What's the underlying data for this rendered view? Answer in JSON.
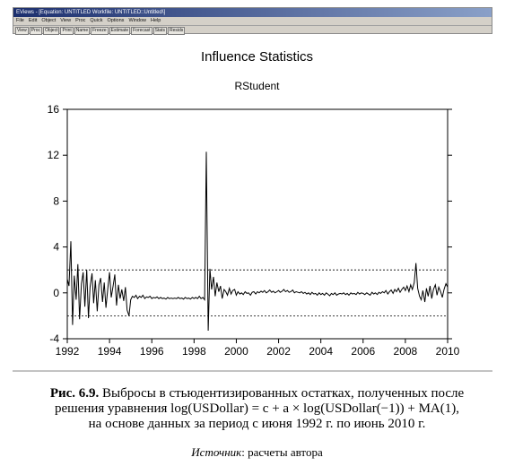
{
  "window": {
    "title": "EViews - [Equation: UNTITLED   Workfile: UNTITLED::Untitled\\]",
    "menu": [
      "File",
      "Edit",
      "Object",
      "View",
      "Proc",
      "Quick",
      "Options",
      "Window",
      "Help"
    ],
    "toolbar": [
      "View",
      "Proc",
      "Object",
      "Print",
      "Name",
      "Freeze",
      "Estimate",
      "Forecast",
      "Stats",
      "Resids"
    ]
  },
  "chart_data": {
    "type": "line",
    "title": "Influence Statistics",
    "subtitle": "RStudent",
    "xlabel": "",
    "ylabel": "",
    "xlim": [
      1992.0,
      2010.0
    ],
    "ylim": [
      -4,
      16
    ],
    "x_ticks": [
      1992,
      1994,
      1996,
      1998,
      2000,
      2002,
      2004,
      2006,
      2008,
      2010
    ],
    "y_ticks": [
      -4,
      0,
      4,
      8,
      12,
      16
    ],
    "reference_lines": [
      2,
      -2
    ],
    "grid": false,
    "series": [
      {
        "points": [
          [
            1992.0,
            1.2
          ],
          [
            1992.08,
            0.6
          ],
          [
            1992.17,
            4.5
          ],
          [
            1992.25,
            -2.8
          ],
          [
            1992.33,
            1.5
          ],
          [
            1992.42,
            -0.6
          ],
          [
            1992.5,
            2.5
          ],
          [
            1992.58,
            -2.3
          ],
          [
            1992.67,
            0.8
          ],
          [
            1992.75,
            1.8
          ],
          [
            1992.83,
            -1.2
          ],
          [
            1992.92,
            2.0
          ],
          [
            1993.0,
            -2.2
          ],
          [
            1993.08,
            0.5
          ],
          [
            1993.17,
            1.7
          ],
          [
            1993.25,
            -0.9
          ],
          [
            1993.33,
            1.1
          ],
          [
            1993.42,
            -1.6
          ],
          [
            1993.5,
            0.7
          ],
          [
            1993.58,
            1.3
          ],
          [
            1993.67,
            -0.8
          ],
          [
            1993.75,
            0.9
          ],
          [
            1993.83,
            -1.3
          ],
          [
            1993.92,
            0.4
          ],
          [
            1994.0,
            1.8
          ],
          [
            1994.08,
            -0.4
          ],
          [
            1994.17,
            0.6
          ],
          [
            1994.25,
            1.6
          ],
          [
            1994.33,
            -1.1
          ],
          [
            1994.42,
            0.7
          ],
          [
            1994.5,
            -0.5
          ],
          [
            1994.58,
            0.3
          ],
          [
            1994.67,
            -0.7
          ],
          [
            1994.75,
            0.5
          ],
          [
            1994.83,
            -1.5
          ],
          [
            1994.92,
            -2.0
          ],
          [
            1995.0,
            -0.6
          ],
          [
            1995.08,
            -0.3
          ],
          [
            1995.17,
            -0.4
          ],
          [
            1995.25,
            -0.2
          ],
          [
            1995.33,
            -0.5
          ],
          [
            1995.42,
            -0.3
          ],
          [
            1995.5,
            -0.4
          ],
          [
            1995.58,
            -0.2
          ],
          [
            1995.67,
            -0.5
          ],
          [
            1995.75,
            -0.35
          ],
          [
            1995.83,
            -0.4
          ],
          [
            1995.92,
            -0.3
          ],
          [
            1996.0,
            -0.5
          ],
          [
            1996.08,
            -0.4
          ],
          [
            1996.17,
            -0.45
          ],
          [
            1996.25,
            -0.35
          ],
          [
            1996.33,
            -0.5
          ],
          [
            1996.42,
            -0.4
          ],
          [
            1996.5,
            -0.5
          ],
          [
            1996.58,
            -0.45
          ],
          [
            1996.67,
            -0.55
          ],
          [
            1996.75,
            -0.4
          ],
          [
            1996.83,
            -0.5
          ],
          [
            1996.92,
            -0.45
          ],
          [
            1997.0,
            -0.5
          ],
          [
            1997.08,
            -0.45
          ],
          [
            1997.17,
            -0.5
          ],
          [
            1997.25,
            -0.4
          ],
          [
            1997.33,
            -0.5
          ],
          [
            1997.42,
            -0.45
          ],
          [
            1997.5,
            -0.55
          ],
          [
            1997.58,
            -0.4
          ],
          [
            1997.67,
            -0.5
          ],
          [
            1997.75,
            -0.45
          ],
          [
            1997.83,
            -0.55
          ],
          [
            1997.92,
            -0.4
          ],
          [
            1998.0,
            -0.5
          ],
          [
            1998.08,
            -0.4
          ],
          [
            1998.17,
            -0.5
          ],
          [
            1998.25,
            -0.3
          ],
          [
            1998.33,
            -0.5
          ],
          [
            1998.42,
            -0.4
          ],
          [
            1998.5,
            -0.6
          ],
          [
            1998.58,
            12.3
          ],
          [
            1998.67,
            -3.3
          ],
          [
            1998.75,
            2.1
          ],
          [
            1998.83,
            0.3
          ],
          [
            1998.92,
            1.4
          ],
          [
            1999.0,
            -0.3
          ],
          [
            1999.08,
            0.9
          ],
          [
            1999.17,
            0.1
          ],
          [
            1999.25,
            0.6
          ],
          [
            1999.33,
            -0.5
          ],
          [
            1999.42,
            0.3
          ],
          [
            1999.5,
            0.1
          ],
          [
            1999.58,
            -0.2
          ],
          [
            1999.67,
            0.4
          ],
          [
            1999.75,
            -0.1
          ],
          [
            1999.83,
            0.2
          ],
          [
            1999.92,
            0.3
          ],
          [
            2000.0,
            -0.2
          ],
          [
            2000.08,
            0.1
          ],
          [
            2000.17,
            -0.1
          ],
          [
            2000.25,
            0.0
          ],
          [
            2000.33,
            -0.15
          ],
          [
            2000.42,
            0.1
          ],
          [
            2000.5,
            -0.05
          ],
          [
            2000.58,
            0.0
          ],
          [
            2000.67,
            -0.2
          ],
          [
            2000.75,
            0.05
          ],
          [
            2000.83,
            0.1
          ],
          [
            2000.92,
            -0.1
          ],
          [
            2001.0,
            0.1
          ],
          [
            2001.08,
            0.0
          ],
          [
            2001.17,
            0.15
          ],
          [
            2001.25,
            0.05
          ],
          [
            2001.33,
            0.2
          ],
          [
            2001.42,
            0.0
          ],
          [
            2001.5,
            0.1
          ],
          [
            2001.58,
            0.25
          ],
          [
            2001.67,
            0.05
          ],
          [
            2001.75,
            0.15
          ],
          [
            2001.83,
            0.0
          ],
          [
            2001.92,
            0.1
          ],
          [
            2002.0,
            0.2
          ],
          [
            2002.08,
            0.05
          ],
          [
            2002.17,
            0.15
          ],
          [
            2002.25,
            0.3
          ],
          [
            2002.33,
            0.1
          ],
          [
            2002.42,
            0.2
          ],
          [
            2002.5,
            0.05
          ],
          [
            2002.58,
            0.1
          ],
          [
            2002.67,
            0.25
          ],
          [
            2002.75,
            0.0
          ],
          [
            2002.83,
            0.1
          ],
          [
            2002.92,
            0.05
          ],
          [
            2003.0,
            0.0
          ],
          [
            2003.08,
            0.1
          ],
          [
            2003.17,
            -0.05
          ],
          [
            2003.25,
            0.05
          ],
          [
            2003.33,
            -0.1
          ],
          [
            2003.42,
            0.0
          ],
          [
            2003.5,
            -0.15
          ],
          [
            2003.58,
            0.05
          ],
          [
            2003.67,
            -0.1
          ],
          [
            2003.75,
            -0.05
          ],
          [
            2003.83,
            -0.2
          ],
          [
            2003.92,
            0.0
          ],
          [
            2004.0,
            -0.15
          ],
          [
            2004.08,
            -0.05
          ],
          [
            2004.17,
            -0.2
          ],
          [
            2004.25,
            0.0
          ],
          [
            2004.33,
            -0.1
          ],
          [
            2004.42,
            -0.25
          ],
          [
            2004.5,
            -0.05
          ],
          [
            2004.58,
            -0.15
          ],
          [
            2004.67,
            0.0
          ],
          [
            2004.75,
            -0.2
          ],
          [
            2004.83,
            -0.1
          ],
          [
            2004.92,
            -0.05
          ],
          [
            2005.0,
            -0.1
          ],
          [
            2005.08,
            0.0
          ],
          [
            2005.17,
            -0.15
          ],
          [
            2005.25,
            -0.05
          ],
          [
            2005.33,
            -0.2
          ],
          [
            2005.42,
            0.0
          ],
          [
            2005.5,
            -0.1
          ],
          [
            2005.58,
            -0.05
          ],
          [
            2005.67,
            -0.15
          ],
          [
            2005.75,
            0.05
          ],
          [
            2005.83,
            -0.1
          ],
          [
            2005.92,
            0.0
          ],
          [
            2006.0,
            -0.05
          ],
          [
            2006.08,
            -0.15
          ],
          [
            2006.17,
            0.0
          ],
          [
            2006.25,
            -0.1
          ],
          [
            2006.33,
            -0.2
          ],
          [
            2006.42,
            0.05
          ],
          [
            2006.5,
            -0.1
          ],
          [
            2006.58,
            0.0
          ],
          [
            2006.67,
            -0.15
          ],
          [
            2006.75,
            0.05
          ],
          [
            2006.83,
            -0.05
          ],
          [
            2006.92,
            0.1
          ],
          [
            2007.0,
            0.0
          ],
          [
            2007.08,
            0.2
          ],
          [
            2007.17,
            -0.1
          ],
          [
            2007.25,
            0.1
          ],
          [
            2007.33,
            0.25
          ],
          [
            2007.42,
            -0.05
          ],
          [
            2007.5,
            0.3
          ],
          [
            2007.58,
            0.1
          ],
          [
            2007.67,
            0.4
          ],
          [
            2007.75,
            0.05
          ],
          [
            2007.83,
            0.3
          ],
          [
            2007.92,
            0.5
          ],
          [
            2008.0,
            0.2
          ],
          [
            2008.08,
            0.6
          ],
          [
            2008.17,
            0.1
          ],
          [
            2008.25,
            0.7
          ],
          [
            2008.33,
            0.3
          ],
          [
            2008.42,
            0.9
          ],
          [
            2008.5,
            2.6
          ],
          [
            2008.58,
            0.4
          ],
          [
            2008.67,
            -0.3
          ],
          [
            2008.75,
            -0.6
          ],
          [
            2008.83,
            0.2
          ],
          [
            2008.92,
            -0.8
          ],
          [
            2009.0,
            0.4
          ],
          [
            2009.08,
            -0.3
          ],
          [
            2009.17,
            0.6
          ],
          [
            2009.25,
            -0.5
          ],
          [
            2009.33,
            0.3
          ],
          [
            2009.42,
            0.7
          ],
          [
            2009.5,
            -0.2
          ],
          [
            2009.58,
            0.5
          ],
          [
            2009.67,
            0.1
          ],
          [
            2009.75,
            -0.4
          ],
          [
            2009.83,
            0.3
          ],
          [
            2009.92,
            0.8
          ],
          [
            2010.0,
            0.5
          ]
        ]
      }
    ]
  },
  "caption": {
    "fig_label": "Рис. 6.9.",
    "line1": " Выбросы в стьюдентизированных остатках, полученных после",
    "line2": "решения уравнения log(USDollar) = c + a × log(USDollar(−1)) + MA(1),",
    "line3": "на основе данных за период с июня 1992 г. по июнь 2010 г.",
    "source_label": "Источник",
    "source_text": ": расчеты автора"
  }
}
